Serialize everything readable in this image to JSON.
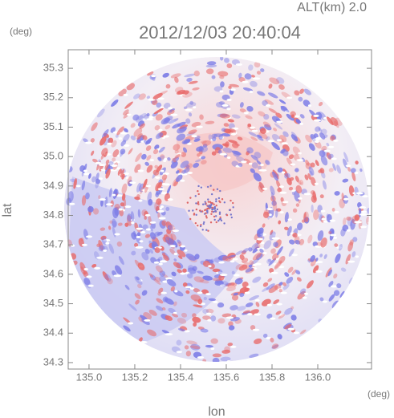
{
  "chart_data": {
    "type": "radar-map",
    "title": "2012/12/03 20:40:04",
    "altitude_label": "ALT(km) 2.0",
    "y_unit": "(deg)",
    "x_unit": "(deg)",
    "xlabel": "lon",
    "ylabel": "lat",
    "xlim": [
      134.909,
      136.235
    ],
    "ylim": [
      34.278,
      35.363
    ],
    "xticks": [
      {
        "value": 135,
        "label": "135.0"
      },
      135.2,
      135.4,
      135.6,
      135.8,
      {
        "value": 136,
        "label": "136.0"
      }
    ],
    "yticks": [
      34.3,
      34.4,
      34.5,
      34.6,
      34.7,
      34.8,
      34.9,
      {
        "value": 35,
        "label": "35.0"
      },
      35.1,
      35.2,
      35.3
    ]
  }
}
